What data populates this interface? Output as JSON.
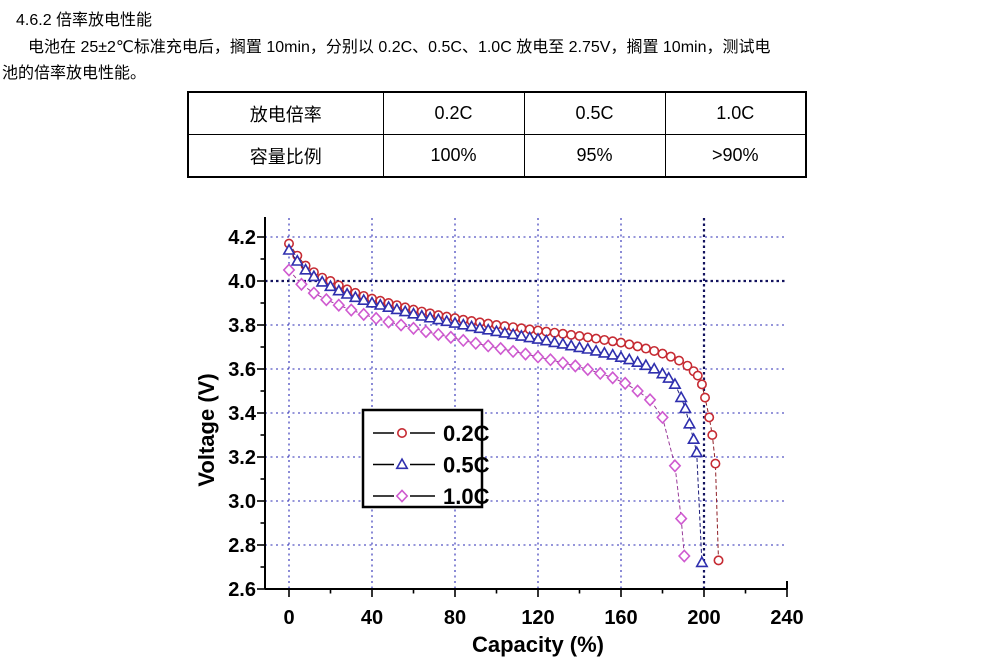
{
  "page": {
    "heading": "4.6.2 倍率放电性能",
    "paragraph_line1": "电池在 25±2℃标准充电后，搁置 10min，分别以 0.2C、0.5C、1.0C 放电至 2.75V，搁置 10min，测试电",
    "paragraph_line2": "池的倍率放电性能。"
  },
  "table": {
    "rows": [
      {
        "header": "放电倍率",
        "cells": [
          "0.2C",
          "0.5C",
          "1.0C"
        ]
      },
      {
        "header": "容量比例",
        "cells": [
          "100%",
          "95%",
          ">90%"
        ]
      }
    ]
  },
  "chart_data": {
    "type": "line",
    "title": "",
    "xlabel": "Capacity (%)",
    "ylabel": "Voltage (V)",
    "xlim": [
      0,
      240
    ],
    "ylim": [
      2.6,
      4.2
    ],
    "x_ticks": [
      0,
      40,
      80,
      120,
      160,
      200,
      240
    ],
    "x_minor_ticks": [
      20,
      60,
      100,
      140,
      180,
      220
    ],
    "x_gridlines": [
      0,
      40,
      80,
      120,
      160,
      200
    ],
    "y_ticks": [
      2.6,
      2.8,
      3.0,
      3.2,
      3.4,
      3.6,
      3.8,
      4.0,
      4.2
    ],
    "y_minor_ticks": [
      2.7,
      2.9,
      3.1,
      3.3,
      3.5,
      3.7,
      3.9,
      4.1
    ],
    "grid": "dotted",
    "grid_color": "#2b2bb4",
    "grid_bold_color": "#12125e",
    "emphasized_gridlines": {
      "x": [
        200
      ],
      "y": [
        4.0
      ]
    },
    "legend_position": "inside-center-left",
    "series": [
      {
        "name": "0.2C",
        "marker": "circle",
        "color": "#c62b33",
        "line_color": "#8f1f26",
        "points": [
          [
            0,
            4.17
          ],
          [
            4,
            4.115
          ],
          [
            8,
            4.07
          ],
          [
            12,
            4.04
          ],
          [
            16,
            4.015
          ],
          [
            20,
            4.0
          ],
          [
            24,
            3.98
          ],
          [
            28,
            3.962
          ],
          [
            32,
            3.946
          ],
          [
            36,
            3.932
          ],
          [
            40,
            3.92
          ],
          [
            44,
            3.91
          ],
          [
            48,
            3.9
          ],
          [
            52,
            3.89
          ],
          [
            56,
            3.88
          ],
          [
            60,
            3.87
          ],
          [
            64,
            3.861
          ],
          [
            68,
            3.853
          ],
          [
            72,
            3.845
          ],
          [
            76,
            3.838
          ],
          [
            80,
            3.831
          ],
          [
            84,
            3.824
          ],
          [
            88,
            3.818
          ],
          [
            92,
            3.812
          ],
          [
            96,
            3.806
          ],
          [
            100,
            3.8
          ],
          [
            104,
            3.795
          ],
          [
            108,
            3.79
          ],
          [
            112,
            3.785
          ],
          [
            116,
            3.78
          ],
          [
            120,
            3.775
          ],
          [
            124,
            3.77
          ],
          [
            128,
            3.765
          ],
          [
            132,
            3.76
          ],
          [
            136,
            3.755
          ],
          [
            140,
            3.75
          ],
          [
            144,
            3.744
          ],
          [
            148,
            3.738
          ],
          [
            152,
            3.732
          ],
          [
            156,
            3.726
          ],
          [
            160,
            3.72
          ],
          [
            164,
            3.712
          ],
          [
            168,
            3.703
          ],
          [
            172,
            3.693
          ],
          [
            176,
            3.682
          ],
          [
            180,
            3.67
          ],
          [
            184,
            3.656
          ],
          [
            188,
            3.638
          ],
          [
            192,
            3.615
          ],
          [
            195,
            3.59
          ],
          [
            197,
            3.57
          ],
          [
            199,
            3.53
          ],
          [
            200.5,
            3.47
          ],
          [
            202.5,
            3.38
          ],
          [
            204,
            3.3
          ],
          [
            205.5,
            3.17
          ],
          [
            207,
            2.73
          ]
        ]
      },
      {
        "name": "0.5C",
        "marker": "triangle",
        "color": "#2f2fae",
        "line_color": "#1d1d7a",
        "points": [
          [
            0,
            4.14
          ],
          [
            4,
            4.09
          ],
          [
            8,
            4.05
          ],
          [
            12,
            4.02
          ],
          [
            16,
            3.995
          ],
          [
            20,
            3.975
          ],
          [
            24,
            3.955
          ],
          [
            28,
            3.94
          ],
          [
            32,
            3.925
          ],
          [
            36,
            3.912
          ],
          [
            40,
            3.9
          ],
          [
            44,
            3.89
          ],
          [
            48,
            3.88
          ],
          [
            52,
            3.87
          ],
          [
            56,
            3.86
          ],
          [
            60,
            3.85
          ],
          [
            64,
            3.84
          ],
          [
            68,
            3.832
          ],
          [
            72,
            3.824
          ],
          [
            76,
            3.816
          ],
          [
            80,
            3.808
          ],
          [
            84,
            3.8
          ],
          [
            88,
            3.792
          ],
          [
            92,
            3.784
          ],
          [
            96,
            3.777
          ],
          [
            100,
            3.77
          ],
          [
            104,
            3.763
          ],
          [
            108,
            3.756
          ],
          [
            112,
            3.749
          ],
          [
            116,
            3.742
          ],
          [
            120,
            3.735
          ],
          [
            124,
            3.728
          ],
          [
            128,
            3.72
          ],
          [
            132,
            3.713
          ],
          [
            136,
            3.705
          ],
          [
            140,
            3.697
          ],
          [
            144,
            3.69
          ],
          [
            148,
            3.681
          ],
          [
            152,
            3.672
          ],
          [
            156,
            3.663
          ],
          [
            160,
            3.653
          ],
          [
            164,
            3.642
          ],
          [
            168,
            3.63
          ],
          [
            172,
            3.616
          ],
          [
            176,
            3.6
          ],
          [
            180,
            3.578
          ],
          [
            183,
            3.558
          ],
          [
            186,
            3.53
          ],
          [
            189,
            3.47
          ],
          [
            191,
            3.42
          ],
          [
            193,
            3.35
          ],
          [
            195,
            3.28
          ],
          [
            196.5,
            3.22
          ],
          [
            199,
            2.72
          ]
        ]
      },
      {
        "name": "1.0C",
        "marker": "diamond",
        "color": "#cf5ad0",
        "line_color": "#993a99",
        "points": [
          [
            0,
            4.05
          ],
          [
            6,
            3.985
          ],
          [
            12,
            3.945
          ],
          [
            18,
            3.915
          ],
          [
            24,
            3.89
          ],
          [
            30,
            3.868
          ],
          [
            36,
            3.848
          ],
          [
            42,
            3.83
          ],
          [
            48,
            3.814
          ],
          [
            54,
            3.8
          ],
          [
            60,
            3.785
          ],
          [
            66,
            3.77
          ],
          [
            72,
            3.757
          ],
          [
            78,
            3.744
          ],
          [
            84,
            3.73
          ],
          [
            90,
            3.717
          ],
          [
            96,
            3.705
          ],
          [
            102,
            3.693
          ],
          [
            108,
            3.68
          ],
          [
            114,
            3.668
          ],
          [
            120,
            3.655
          ],
          [
            126,
            3.642
          ],
          [
            132,
            3.628
          ],
          [
            138,
            3.614
          ],
          [
            144,
            3.598
          ],
          [
            150,
            3.58
          ],
          [
            156,
            3.56
          ],
          [
            162,
            3.535
          ],
          [
            168,
            3.5
          ],
          [
            174,
            3.46
          ],
          [
            180,
            3.38
          ],
          [
            186,
            3.16
          ],
          [
            189,
            2.92
          ],
          [
            190.5,
            2.75
          ]
        ]
      }
    ]
  }
}
